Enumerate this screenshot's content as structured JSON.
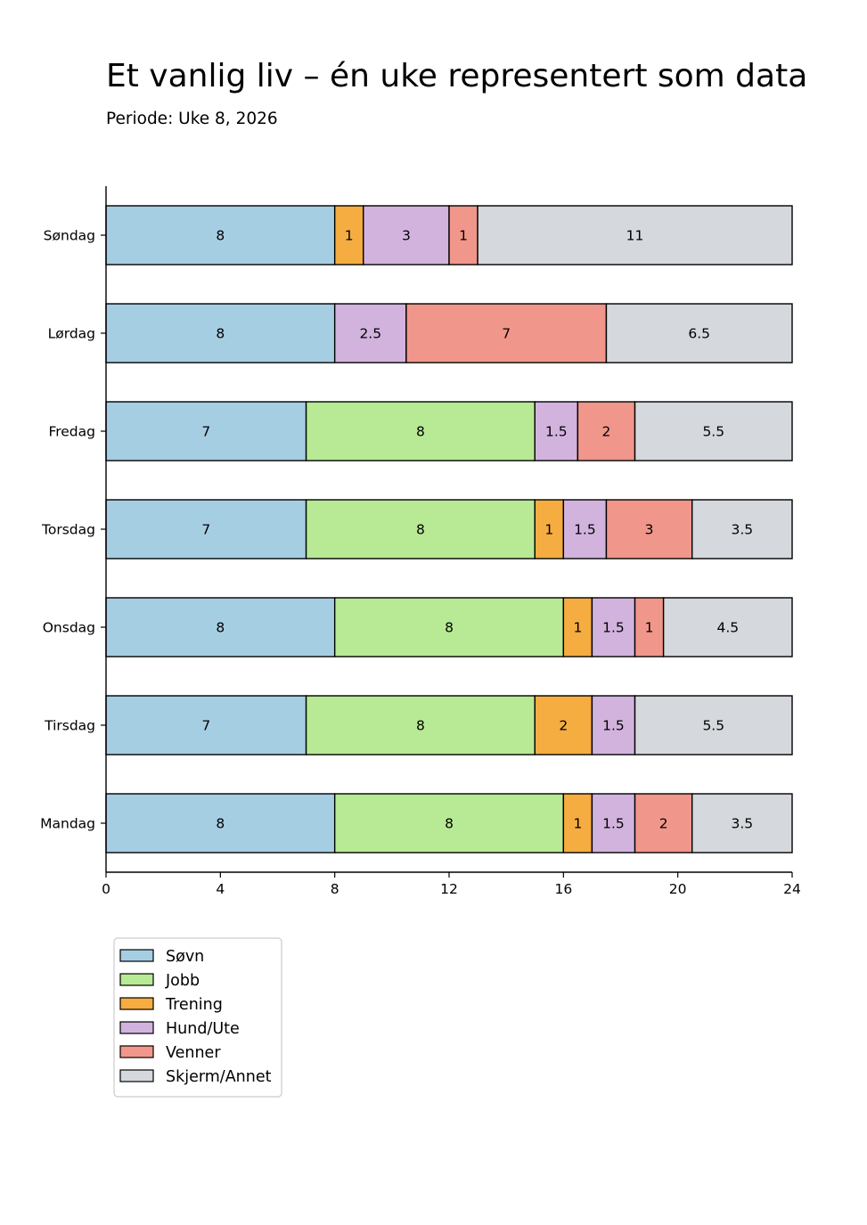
{
  "chart_data": {
    "type": "bar",
    "orientation": "horizontal",
    "stacked": true,
    "title": "Et vanlig liv – én uke representert som data",
    "subtitle": "Periode: Uke 8, 2026",
    "xlabel": "",
    "ylabel": "",
    "xlim": [
      0,
      24
    ],
    "xticks": [
      0,
      4,
      8,
      12,
      16,
      20,
      24
    ],
    "grid": false,
    "legend_position": "bottom-left, below plot",
    "categories": [
      "Søndag",
      "Lørdag",
      "Fredag",
      "Torsdag",
      "Onsdag",
      "Tirsdag",
      "Mandag"
    ],
    "series": [
      {
        "name": "Søvn",
        "color": "#a6cee3",
        "values": [
          8,
          8,
          7,
          7,
          8,
          7,
          8
        ]
      },
      {
        "name": "Jobb",
        "color": "#b8e994",
        "values": [
          0,
          0,
          8,
          8,
          8,
          8,
          8
        ]
      },
      {
        "name": "Trening",
        "color": "#f5ac40",
        "values": [
          1,
          0,
          0,
          1,
          1,
          2,
          1
        ]
      },
      {
        "name": "Hund/Ute",
        "color": "#d2b3de",
        "values": [
          3,
          2.5,
          1.5,
          1.5,
          1.5,
          1.5,
          1.5
        ]
      },
      {
        "name": "Venner",
        "color": "#f1968a",
        "values": [
          1,
          7,
          2,
          3,
          1,
          0,
          2
        ]
      },
      {
        "name": "Skjerm/Annet",
        "color": "#d5d8dc",
        "values": [
          11,
          6.5,
          5.5,
          3.5,
          4.5,
          5.5,
          3.5
        ]
      }
    ]
  }
}
